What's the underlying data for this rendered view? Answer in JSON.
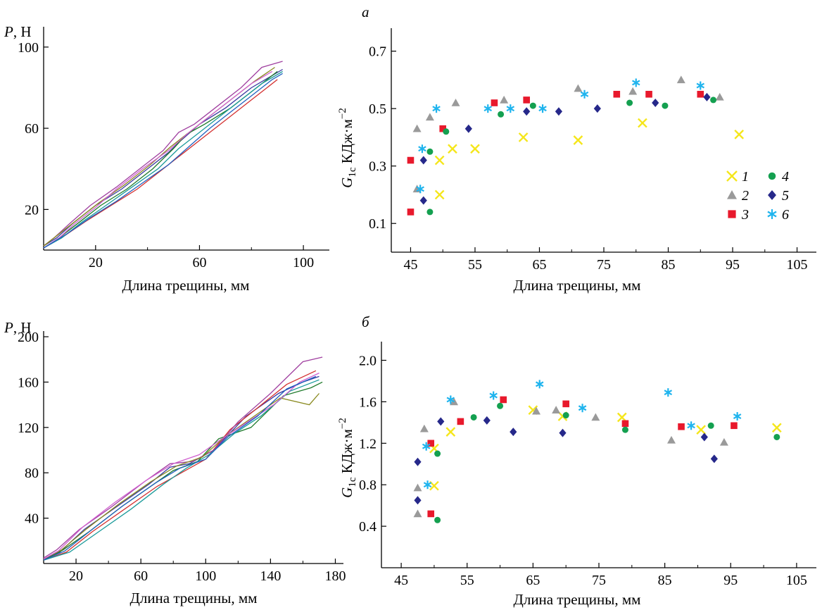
{
  "panel_labels": {
    "a": "а",
    "b": "б"
  },
  "marker_colors": {
    "1": "#f5e61b",
    "2": "#9a9a9a",
    "3": "#e8192c",
    "4": "#14a050",
    "5": "#26288a",
    "6": "#1fb4ee"
  },
  "legend": {
    "markers": [
      {
        "id": "1",
        "shape": "x-cross-icon",
        "label": "1"
      },
      {
        "id": "2",
        "shape": "triangle-icon",
        "label": "2"
      },
      {
        "id": "3",
        "shape": "square-icon",
        "label": "3"
      },
      {
        "id": "4",
        "shape": "circle-icon",
        "label": "4"
      },
      {
        "id": "5",
        "shape": "diamond-icon",
        "label": "5"
      },
      {
        "id": "6",
        "shape": "asterisk-icon",
        "label": "6"
      }
    ]
  },
  "chart_data": [
    {
      "id": "a-left",
      "type": "line",
      "title": "",
      "ylabel_italic": "P",
      "ylabel": ", Н",
      "xlabel": "Длина трещины, мм",
      "xlim": [
        0,
        110
      ],
      "ylim": [
        0,
        110
      ],
      "xticks": [
        20,
        60,
        100
      ],
      "yticks": [
        20,
        60,
        100
      ],
      "grid": false,
      "line_colors": [
        "#3a3aa0",
        "#1e7a2a",
        "#d43030",
        "#a040a0",
        "#1a9a9a",
        "#8a8a20",
        "#d060d0",
        "#2060c0"
      ],
      "series": [
        {
          "x": [
            0,
            5,
            12,
            20,
            30,
            40,
            48,
            52,
            60,
            70,
            80,
            88,
            92
          ],
          "y": [
            2,
            6,
            14,
            22,
            30,
            40,
            48,
            53,
            62,
            70,
            80,
            86,
            89
          ]
        },
        {
          "x": [
            0,
            6,
            14,
            22,
            32,
            42,
            50,
            55,
            62,
            72,
            82,
            90
          ],
          "y": [
            1,
            6,
            14,
            22,
            30,
            40,
            50,
            57,
            62,
            70,
            80,
            88
          ]
        },
        {
          "x": [
            0,
            8,
            16,
            26,
            36,
            46,
            54,
            62,
            70,
            78,
            86,
            90
          ],
          "y": [
            1,
            7,
            14,
            22,
            30,
            40,
            48,
            56,
            64,
            72,
            80,
            84
          ]
        },
        {
          "x": [
            0,
            4,
            10,
            18,
            28,
            38,
            46,
            52,
            58,
            66,
            76,
            84,
            92
          ],
          "y": [
            2,
            6,
            13,
            22,
            31,
            41,
            49,
            58,
            62,
            70,
            80,
            90,
            93
          ]
        },
        {
          "x": [
            0,
            7,
            15,
            24,
            34,
            44,
            52,
            60,
            68,
            76,
            84,
            92
          ],
          "y": [
            1,
            6,
            14,
            22,
            31,
            40,
            50,
            58,
            66,
            74,
            82,
            88
          ]
        },
        {
          "x": [
            0,
            5,
            13,
            21,
            31,
            41,
            49,
            57,
            65,
            73,
            81,
            89
          ],
          "y": [
            2,
            7,
            15,
            23,
            32,
            42,
            51,
            59,
            67,
            75,
            83,
            90
          ]
        },
        {
          "x": [
            0,
            6,
            12,
            20,
            28,
            38,
            48,
            56,
            64,
            72,
            80,
            88
          ],
          "y": [
            1,
            6,
            13,
            21,
            30,
            40,
            49,
            58,
            66,
            74,
            82,
            88
          ]
        },
        {
          "x": [
            0,
            9,
            18,
            28,
            38,
            48,
            56,
            64,
            72,
            80,
            88,
            92
          ],
          "y": [
            1,
            8,
            16,
            24,
            33,
            42,
            51,
            60,
            68,
            76,
            84,
            87
          ]
        }
      ]
    },
    {
      "id": "a-right",
      "type": "scatter",
      "title": "",
      "ylabel_italic": "G",
      "ylabel_sub": "1c",
      "ylabel": " КДж·м",
      "ylabel_sup": "−2",
      "xlabel": "Длина трещины, мм",
      "xlim": [
        42,
        108
      ],
      "ylim": [
        0.0,
        0.78
      ],
      "xticks": [
        45,
        55,
        65,
        75,
        85,
        95,
        105
      ],
      "yticks": [
        0.1,
        0.3,
        0.5,
        0.7
      ],
      "ytick_labels": [
        "0.1",
        "0.3",
        "0.5",
        "0.7"
      ],
      "grid": false,
      "series": [
        {
          "id": "1",
          "points": [
            [
              49.5,
              0.2
            ],
            [
              49.5,
              0.32
            ],
            [
              51.5,
              0.36
            ],
            [
              55,
              0.36
            ],
            [
              62.5,
              0.4
            ],
            [
              71,
              0.39
            ],
            [
              81,
              0.45
            ],
            [
              96,
              0.41
            ]
          ]
        },
        {
          "id": "2",
          "points": [
            [
              46,
              0.22
            ],
            [
              46,
              0.43
            ],
            [
              48,
              0.47
            ],
            [
              52,
              0.52
            ],
            [
              59.5,
              0.53
            ],
            [
              71,
              0.57
            ],
            [
              79.5,
              0.56
            ],
            [
              87,
              0.6
            ],
            [
              93,
              0.54
            ]
          ]
        },
        {
          "id": "3",
          "points": [
            [
              45,
              0.14
            ],
            [
              45,
              0.32
            ],
            [
              50,
              0.43
            ],
            [
              58,
              0.52
            ],
            [
              63,
              0.53
            ],
            [
              77,
              0.55
            ],
            [
              82,
              0.55
            ],
            [
              90,
              0.55
            ]
          ]
        },
        {
          "id": "4",
          "points": [
            [
              48,
              0.14
            ],
            [
              48,
              0.35
            ],
            [
              50.5,
              0.42
            ],
            [
              59,
              0.48
            ],
            [
              64,
              0.51
            ],
            [
              79,
              0.52
            ],
            [
              84.5,
              0.51
            ],
            [
              92,
              0.53
            ]
          ]
        },
        {
          "id": "5",
          "points": [
            [
              47,
              0.18
            ],
            [
              47,
              0.32
            ],
            [
              54,
              0.43
            ],
            [
              63,
              0.49
            ],
            [
              68,
              0.49
            ],
            [
              74,
              0.5
            ],
            [
              83,
              0.52
            ],
            [
              91,
              0.54
            ]
          ]
        },
        {
          "id": "6",
          "points": [
            [
              46.5,
              0.22
            ],
            [
              46.8,
              0.36
            ],
            [
              49,
              0.5
            ],
            [
              57,
              0.5
            ],
            [
              60.5,
              0.5
            ],
            [
              65.5,
              0.5
            ],
            [
              72,
              0.55
            ],
            [
              80,
              0.59
            ],
            [
              90,
              0.58
            ]
          ]
        }
      ]
    },
    {
      "id": "b-left",
      "type": "line",
      "title": "",
      "ylabel_italic": "P",
      "ylabel": ", Н",
      "xlabel": "Длина трещины, мм",
      "xlim": [
        0,
        185
      ],
      "ylim": [
        0,
        205
      ],
      "xticks": [
        20,
        60,
        100,
        140,
        180
      ],
      "yticks": [
        40,
        80,
        120,
        160,
        200
      ],
      "grid": false,
      "line_colors": [
        "#3a3aa0",
        "#1e7a2a",
        "#d43030",
        "#a040a0",
        "#1a9a9a",
        "#8a8a20",
        "#d060d0",
        "#2060c0"
      ],
      "series": [
        {
          "x": [
            0,
            10,
            25,
            45,
            65,
            78,
            90,
            105,
            125,
            145,
            160,
            170
          ],
          "y": [
            4,
            10,
            30,
            50,
            70,
            85,
            88,
            100,
            130,
            150,
            160,
            165
          ]
        },
        {
          "x": [
            0,
            12,
            28,
            48,
            68,
            80,
            95,
            108,
            128,
            148,
            165,
            172
          ],
          "y": [
            3,
            12,
            28,
            50,
            70,
            82,
            90,
            110,
            120,
            148,
            155,
            160
          ]
        },
        {
          "x": [
            0,
            14,
            30,
            50,
            70,
            85,
            100,
            115,
            130,
            150,
            168
          ],
          "y": [
            3,
            10,
            28,
            48,
            68,
            80,
            92,
            118,
            135,
            158,
            170
          ]
        },
        {
          "x": [
            0,
            8,
            22,
            42,
            62,
            78,
            92,
            105,
            120,
            140,
            160,
            172
          ],
          "y": [
            5,
            12,
            30,
            50,
            72,
            88,
            90,
            100,
            125,
            150,
            178,
            182
          ]
        },
        {
          "x": [
            0,
            16,
            34,
            54,
            74,
            88,
            102,
            118,
            134,
            152,
            170
          ],
          "y": [
            3,
            10,
            28,
            48,
            70,
            84,
            96,
            115,
            130,
            152,
            162
          ]
        },
        {
          "x": [
            0,
            11,
            26,
            46,
            66,
            82,
            98,
            112,
            128,
            146,
            164,
            170
          ],
          "y": [
            4,
            12,
            30,
            52,
            72,
            86,
            94,
            112,
            128,
            146,
            140,
            150
          ]
        },
        {
          "x": [
            0,
            9,
            24,
            44,
            64,
            80,
            96,
            110,
            126,
            142,
            158,
            170
          ],
          "y": [
            4,
            11,
            32,
            54,
            74,
            88,
            96,
            110,
            125,
            140,
            160,
            168
          ]
        },
        {
          "x": [
            0,
            13,
            29,
            49,
            69,
            84,
            100,
            114,
            132,
            150,
            168
          ],
          "y": [
            3,
            11,
            29,
            51,
            71,
            84,
            92,
            112,
            130,
            154,
            165
          ]
        }
      ]
    },
    {
      "id": "b-right",
      "type": "scatter",
      "title": "",
      "ylabel_italic": "G",
      "ylabel_sub": "1c",
      "ylabel": " КДж·м",
      "ylabel_sup": "−2",
      "xlabel": "Длина трещины, мм",
      "xlim": [
        42,
        108
      ],
      "ylim": [
        0.0,
        2.18
      ],
      "xticks": [
        45,
        55,
        65,
        75,
        85,
        95,
        105
      ],
      "yticks": [
        0.4,
        0.8,
        1.2,
        1.6,
        2.0
      ],
      "ytick_labels": [
        "0.4",
        "0.8",
        "1.2",
        "1.6",
        "2.0"
      ],
      "grid": false,
      "series": [
        {
          "id": "1",
          "points": [
            [
              50,
              0.79
            ],
            [
              50,
              1.15
            ],
            [
              52.5,
              1.31
            ],
            [
              65,
              1.52
            ],
            [
              69.5,
              1.46
            ],
            [
              78.5,
              1.45
            ],
            [
              90.5,
              1.33
            ],
            [
              102,
              1.35
            ]
          ]
        },
        {
          "id": "2",
          "points": [
            [
              47.5,
              0.52
            ],
            [
              47.5,
              0.77
            ],
            [
              48.5,
              1.34
            ],
            [
              53,
              1.6
            ],
            [
              65.5,
              1.51
            ],
            [
              68.5,
              1.52
            ],
            [
              74.5,
              1.45
            ],
            [
              86,
              1.23
            ],
            [
              94,
              1.21
            ]
          ]
        },
        {
          "id": "3",
          "points": [
            [
              49.5,
              0.52
            ],
            [
              49.5,
              1.2
            ],
            [
              54,
              1.41
            ],
            [
              60.5,
              1.62
            ],
            [
              70,
              1.58
            ],
            [
              79,
              1.39
            ],
            [
              87.5,
              1.36
            ],
            [
              95.5,
              1.37
            ]
          ]
        },
        {
          "id": "4",
          "points": [
            [
              50.5,
              0.46
            ],
            [
              50.5,
              1.1
            ],
            [
              56,
              1.45
            ],
            [
              60,
              1.56
            ],
            [
              70,
              1.47
            ],
            [
              79,
              1.33
            ],
            [
              92,
              1.37
            ],
            [
              102,
              1.26
            ]
          ]
        },
        {
          "id": "5",
          "points": [
            [
              47.5,
              0.65
            ],
            [
              47.5,
              1.02
            ],
            [
              51,
              1.41
            ],
            [
              58,
              1.42
            ],
            [
              62,
              1.31
            ],
            [
              69.5,
              1.3
            ],
            [
              91,
              1.26
            ],
            [
              92.5,
              1.05
            ]
          ]
        },
        {
          "id": "6",
          "points": [
            [
              49,
              0.8
            ],
            [
              48.8,
              1.17
            ],
            [
              52.5,
              1.62
            ],
            [
              59,
              1.66
            ],
            [
              66,
              1.77
            ],
            [
              72.5,
              1.54
            ],
            [
              85.5,
              1.69
            ],
            [
              89,
              1.37
            ],
            [
              96,
              1.46
            ]
          ]
        }
      ]
    }
  ]
}
